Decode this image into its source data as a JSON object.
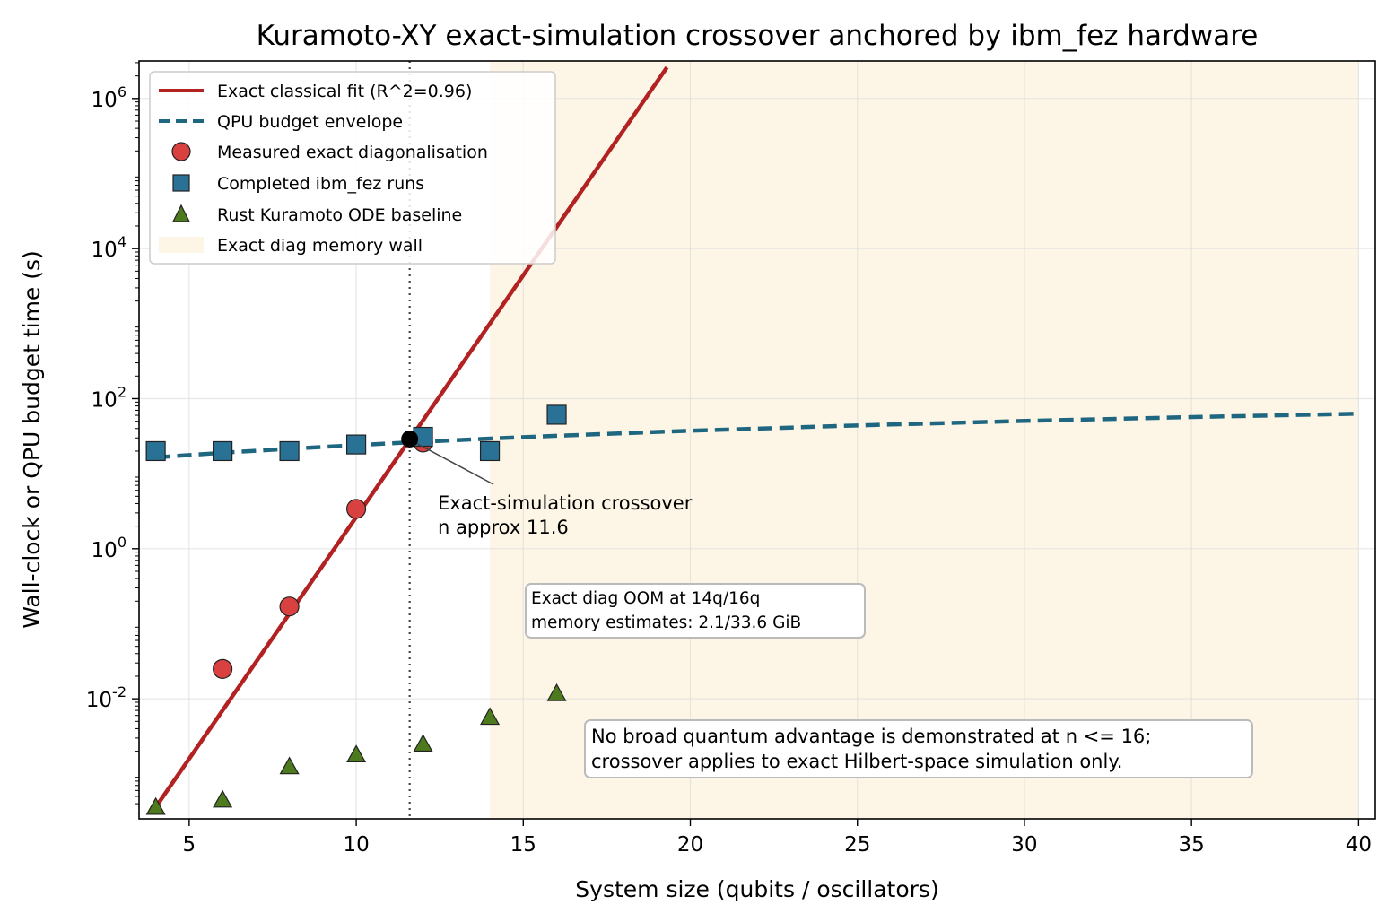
{
  "chart_data": {
    "type": "scatter",
    "title": "Kuramoto-XY exact-simulation crossover anchored by ibm_fez hardware",
    "xlabel": "System size (qubits / oscillators)",
    "ylabel": "Wall-clock or QPU budget time (s)",
    "xlim": [
      3.5,
      40.5
    ],
    "ylim_log10": [
      -3.6,
      6.5
    ],
    "yscale": "log",
    "grid": true,
    "legend_position": "top-left",
    "x_ticks": [
      "5",
      "10",
      "15",
      "20",
      "25",
      "30",
      "35",
      "40"
    ],
    "y_ticks": [
      {
        "base": "10",
        "exp": "-2"
      },
      {
        "base": "10",
        "exp": "0"
      },
      {
        "base": "10",
        "exp": "2"
      },
      {
        "base": "10",
        "exp": "4"
      },
      {
        "base": "10",
        "exp": "6"
      }
    ],
    "series": [
      {
        "name": "Exact classical fit (R^2=0.96)",
        "kind": "line",
        "color": "#b22222",
        "x": [
          4,
          19.3
        ],
        "y": [
          0.00036,
          2600000
        ]
      },
      {
        "name": "QPU budget envelope",
        "kind": "dashed-line",
        "color": "#1f6680",
        "x": [
          4,
          6,
          8,
          10,
          12,
          14,
          16,
          20,
          25,
          30,
          35,
          40
        ],
        "y": [
          16.5,
          19.0,
          21.5,
          24.0,
          26.7,
          29.4,
          32.0,
          37.4,
          44.0,
          50.5,
          56.8,
          63.0
        ]
      },
      {
        "name": "Measured exact diagonalisation",
        "kind": "circle",
        "color": "#d94040",
        "x": [
          6,
          8,
          10,
          12
        ],
        "y": [
          0.025,
          0.17,
          3.4,
          26
        ]
      },
      {
        "name": "Completed ibm_fez runs",
        "kind": "square",
        "color": "#2a7196",
        "x": [
          4,
          6,
          8,
          10,
          12,
          14,
          16
        ],
        "y": [
          20,
          20,
          20,
          24.5,
          31,
          20,
          61
        ]
      },
      {
        "name": "Rust Kuramoto ODE baseline",
        "kind": "triangle",
        "color": "#4c7a1d",
        "x": [
          4,
          6,
          8,
          10,
          12,
          14,
          16
        ],
        "y": [
          0.00036,
          0.00045,
          0.00125,
          0.0018,
          0.0025,
          0.0057,
          0.0118
        ]
      }
    ],
    "shaded_region": {
      "name": "Exact diag memory wall",
      "x_from": 14,
      "x_to": 40,
      "color": "#fdf6e6"
    },
    "crossover": {
      "x": 11.6,
      "y": 29,
      "label_line1": "Exact-simulation crossover",
      "label_line2": "n approx 11.6"
    },
    "annotations": [
      {
        "line1": "Exact diag OOM at 14q/16q",
        "line2": "memory estimates: 2.1/33.6 GiB"
      },
      {
        "line1": "No broad quantum advantage is demonstrated at n <= 16;",
        "line2": "crossover applies to exact Hilbert-space simulation only."
      }
    ]
  }
}
